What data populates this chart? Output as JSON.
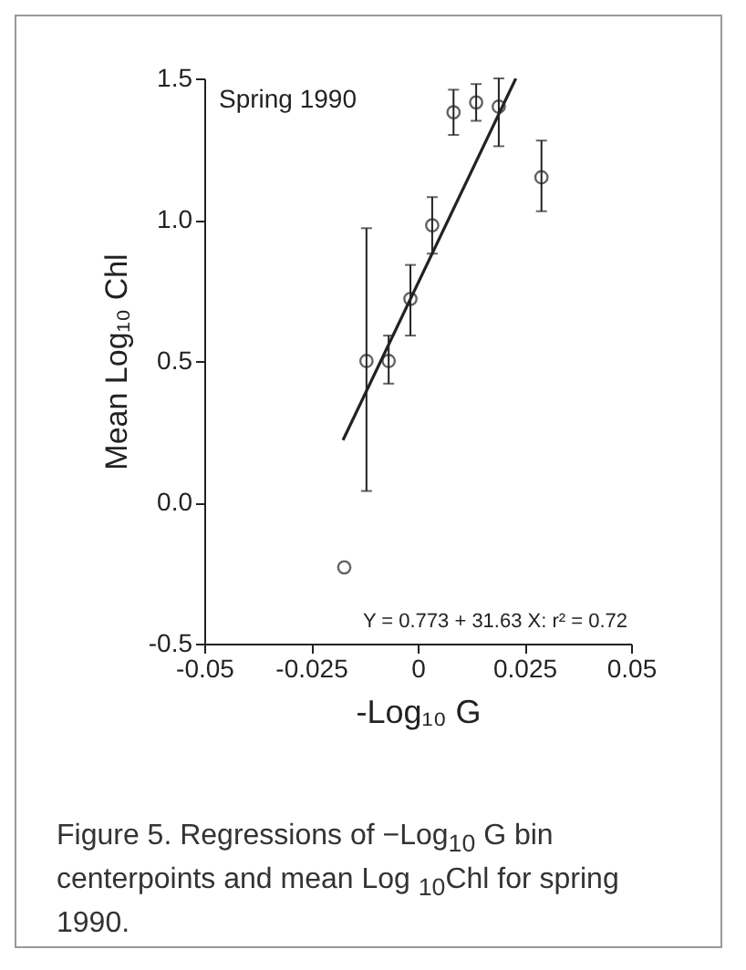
{
  "chart_data": {
    "type": "scatter",
    "xlabel": "-Log₁₀ G",
    "ylabel": "Mean Log₁₀ Chl",
    "xlim": [
      -0.05,
      0.05
    ],
    "xticks": [
      -0.05,
      -0.025,
      0,
      0.025,
      0.05
    ],
    "ylim": [
      -0.5,
      1.5
    ],
    "yticks": [
      {
        "value": -0.5,
        "label": "-0.5"
      },
      {
        "value": 0,
        "label": "0.0"
      },
      {
        "value": 0.5,
        "label": "0.5"
      },
      {
        "value": 1,
        "label": "1.0"
      },
      {
        "value": 1.5,
        "label": "1.5"
      }
    ],
    "marker": "circle",
    "series": [
      {
        "color": "#222222",
        "x": [
          -0.012,
          -0.0068,
          -0.0017,
          0.0034,
          0.0084,
          0.0137,
          0.019,
          0.029,
          -0.0172
        ],
        "values": [
          0.5,
          0.5,
          0.72,
          0.98,
          1.38,
          1.415,
          1.4,
          1.15,
          -0.23
        ],
        "errors": [
          [
            0.04,
            0.97
          ],
          [
            0.42,
            0.59
          ],
          [
            0.59,
            0.84
          ],
          [
            0.88,
            1.08
          ],
          [
            1.3,
            1.46
          ],
          [
            1.35,
            1.48
          ],
          [
            1.26,
            1.5
          ],
          [
            1.03,
            1.28
          ],
          null
        ]
      },
      {
        "type": "line",
        "marker": "none",
        "color": "#222222",
        "x": [
          -0.0175,
          0.023
        ],
        "values": [
          0.22,
          1.5
        ]
      }
    ],
    "annotations": [
      "Spring 1990",
      "Y = 0.773 + 31.63 X: r² = 0.72",
      "Figure 5. Regressions of −Log$_{10}$ G bin centerpoints and mean Log $_{10}$Chl for spring 1990."
    ]
  }
}
